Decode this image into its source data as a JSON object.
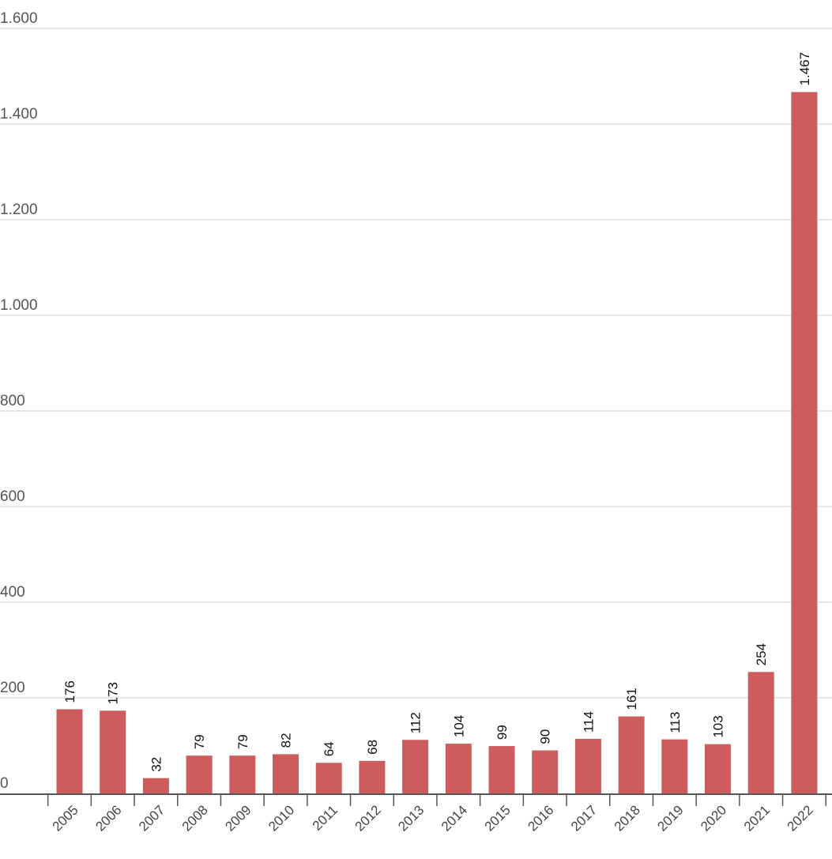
{
  "chart_data": {
    "type": "bar",
    "categories": [
      "2005",
      "2006",
      "2007",
      "2008",
      "2009",
      "2010",
      "2011",
      "2012",
      "2013",
      "2014",
      "2015",
      "2016",
      "2017",
      "2018",
      "2019",
      "2020",
      "2021",
      "2022"
    ],
    "values": [
      176,
      173,
      32,
      79,
      79,
      82,
      64,
      68,
      112,
      104,
      99,
      90,
      114,
      161,
      113,
      103,
      254,
      1467
    ],
    "value_labels": [
      "176",
      "173",
      "32",
      "79",
      "79",
      "82",
      "64",
      "68",
      "112",
      "104",
      "99",
      "90",
      "114",
      "161",
      "113",
      "103",
      "254",
      "1.467"
    ],
    "y_ticks": [
      0,
      200,
      400,
      600,
      800,
      1000,
      1200,
      1400,
      1600
    ],
    "y_tick_labels": [
      "0",
      "200",
      "400",
      "600",
      "800",
      "1.000",
      "1.200",
      "1.400",
      "1.600"
    ],
    "ylim": [
      0,
      1600
    ],
    "grid": true,
    "legend": "none",
    "title": "",
    "xlabel": "",
    "ylabel": "",
    "colors": {
      "bar": "#cd5c5c",
      "grid": "#d9d9d9",
      "axis": "#555555"
    }
  }
}
